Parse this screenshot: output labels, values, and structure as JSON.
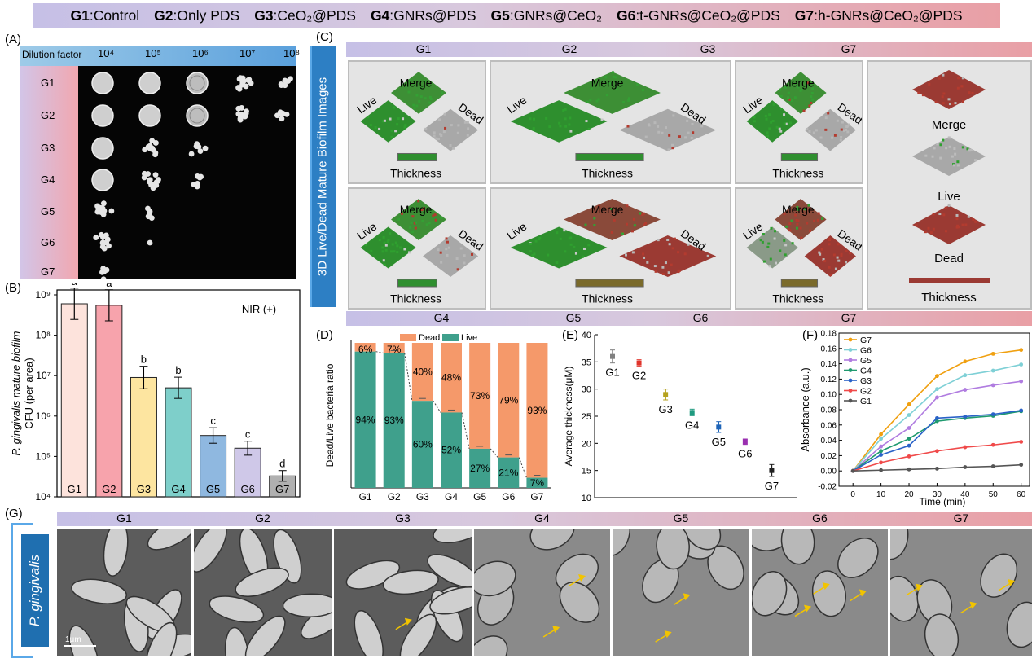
{
  "legend": {
    "items": [
      {
        "key": "G1",
        "sep": ":",
        "text": "Control"
      },
      {
        "key": "G2",
        "sep": ":",
        "text": "Only PDS"
      },
      {
        "key": "G3",
        "sep": ":",
        "text": "CeO₂@PDS"
      },
      {
        "key": "G4",
        "sep": ":",
        "text": "GNRs@PDS"
      },
      {
        "key": "G5",
        "sep": ":",
        "text": "GNRs@CeO₂"
      },
      {
        "key": "G6",
        "sep": ":",
        "text": "t-GNRs@CeO₂@PDS"
      },
      {
        "key": "G7",
        "sep": ":",
        "text": "h-GNRs@CeO₂@PDS"
      }
    ]
  },
  "panelA": {
    "label": "(A)",
    "dilution_label": "Dilution factor",
    "dilutions": [
      "10⁴",
      "10⁵",
      "10⁶",
      "10⁷",
      "10⁸"
    ],
    "rows": [
      "G1",
      "G2",
      "G3",
      "G4",
      "G5",
      "G6",
      "G7"
    ]
  },
  "panelB": {
    "label": "(B)",
    "ylabel_line1": "P. gingivalis mature biofilm",
    "ylabel_line2": "CFU (per area)",
    "annotation": "NIR (+)",
    "yticks": [
      "10⁴",
      "10⁵",
      "10⁶",
      "10⁷",
      "10⁸",
      "10⁹"
    ]
  },
  "panelC": {
    "label": "(C)",
    "side_title": "3D Live/Dead Mature Biofilm Images",
    "top_groups": [
      "G1",
      "G2",
      "G3",
      "G7"
    ],
    "bottom_groups": [
      "G4",
      "G5",
      "G6",
      "G7"
    ],
    "tile_labels": {
      "merge": "Merge",
      "live": "Live",
      "dead": "Dead",
      "thickness": "Thickness"
    }
  },
  "panelD": {
    "label": "(D)"
  },
  "panelE": {
    "label": "(E)"
  },
  "panelF": {
    "label": "(F)"
  },
  "panelG": {
    "label": "(G)",
    "side_title": "P. gingivalis",
    "groups": [
      "G1",
      "G2",
      "G3",
      "G4",
      "G5",
      "G6",
      "G7"
    ],
    "scale_bar": "1μm"
  },
  "chart_data": [
    {
      "type": "bar",
      "panel": "B",
      "categories": [
        "G1",
        "G2",
        "G3",
        "G4",
        "G5",
        "G6",
        "G7"
      ],
      "values": [
        600000000,
        550000000,
        9000000,
        5000000,
        330000,
        160000,
        33000
      ],
      "significance_letters": [
        "a",
        "a",
        "b",
        "b",
        "c",
        "c",
        "d"
      ],
      "yscale": "log",
      "ylim": [
        10000,
        1000000000
      ],
      "ylabel": "P. gingivalis mature biofilm CFU (per area)",
      "annotation": "NIR (+)",
      "colors": [
        "#fde3dc",
        "#f7a3ac",
        "#fde5a0",
        "#7ecfca",
        "#8fb8e0",
        "#cfc8e8",
        "#b0b0b0"
      ]
    },
    {
      "type": "bar",
      "panel": "D",
      "stacked": true,
      "categories": [
        "G1",
        "G2",
        "G3",
        "G4",
        "G5",
        "G6",
        "G7"
      ],
      "series": [
        {
          "name": "Live",
          "values": [
            94,
            93,
            60,
            52,
            27,
            21,
            7
          ],
          "color": "#3fa08c"
        },
        {
          "name": "Dead",
          "values": [
            6,
            7,
            40,
            48,
            73,
            79,
            93
          ],
          "color": "#f5996a"
        }
      ],
      "ylabel": "Dead/Live bacteria ratio",
      "ylim": [
        0,
        100
      ],
      "legend": "top-center"
    },
    {
      "type": "scatter",
      "panel": "E",
      "categories": [
        "G1",
        "G2",
        "G3",
        "G4",
        "G5",
        "G6",
        "G7"
      ],
      "values": [
        36,
        34.8,
        29,
        25.7,
        23,
        20.3,
        15
      ],
      "errors": [
        1.2,
        0.6,
        1.0,
        0.6,
        1.0,
        0.5,
        1.1
      ],
      "colors": [
        "#808080",
        "#e0342b",
        "#b5a21f",
        "#1f9a7f",
        "#1e64b8",
        "#9a2fb0",
        "#222222"
      ],
      "ylabel": "Average thickness(μM)",
      "ylim": [
        10,
        40
      ],
      "yticks": [
        10,
        15,
        20,
        25,
        30,
        35,
        40
      ]
    },
    {
      "type": "line",
      "panel": "F",
      "x": [
        0,
        10,
        20,
        30,
        40,
        50,
        60
      ],
      "xlabel": "Time (min)",
      "ylabel": "Absorbance (a.u.)",
      "ylim": [
        -0.02,
        0.18
      ],
      "xlim": [
        -5,
        63
      ],
      "yticks": [
        "-0.02",
        "0.00",
        "0.02",
        "0.04",
        "0.06",
        "0.08",
        "0.10",
        "0.12",
        "0.14",
        "0.16",
        "0.18"
      ],
      "xticks": [
        0,
        10,
        20,
        30,
        40,
        50,
        60
      ],
      "legend": "top-left",
      "series": [
        {
          "name": "G7",
          "color": "#f0a010",
          "values": [
            0,
            0.048,
            0.087,
            0.124,
            0.143,
            0.153,
            0.158
          ]
        },
        {
          "name": "G6",
          "color": "#7fd0d6",
          "values": [
            0,
            0.042,
            0.073,
            0.107,
            0.125,
            0.131,
            0.139
          ]
        },
        {
          "name": "G5",
          "color": "#b07ce0",
          "values": [
            0,
            0.032,
            0.056,
            0.096,
            0.106,
            0.112,
            0.117
          ]
        },
        {
          "name": "G4",
          "color": "#1f9a6f",
          "values": [
            0,
            0.026,
            0.042,
            0.065,
            0.069,
            0.072,
            0.078
          ]
        },
        {
          "name": "G3",
          "color": "#2a62c8",
          "values": [
            0,
            0.021,
            0.033,
            0.069,
            0.071,
            0.074,
            0.079
          ]
        },
        {
          "name": "G2",
          "color": "#f04a4a",
          "values": [
            0,
            0.011,
            0.019,
            0.026,
            0.031,
            0.034,
            0.038
          ]
        },
        {
          "name": "G1",
          "color": "#555555",
          "values": [
            0,
            0.001,
            0.002,
            0.003,
            0.005,
            0.006,
            0.008
          ]
        }
      ]
    }
  ]
}
